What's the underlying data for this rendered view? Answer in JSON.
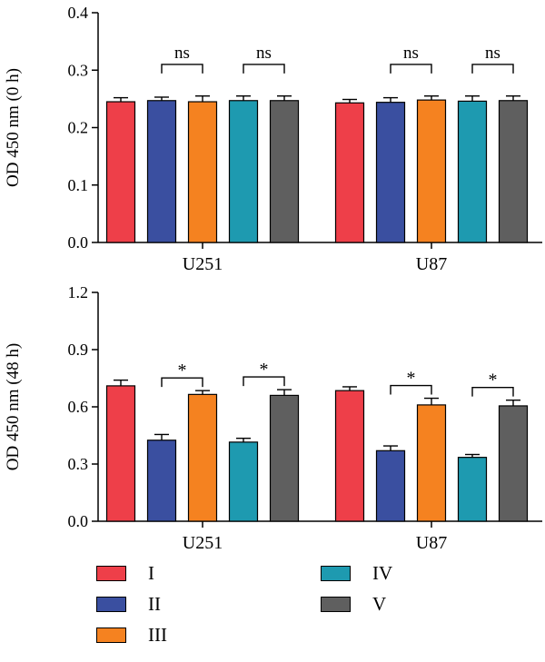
{
  "chart_data": [
    {
      "type": "bar",
      "ylabel": "OD 450 nm (0 h)",
      "ylim": [
        0,
        0.4
      ],
      "yticks": [
        "0.0",
        "0.1",
        "0.2",
        "0.3",
        "0.4"
      ],
      "ytick_values": [
        0,
        0.1,
        0.2,
        0.3,
        0.4
      ],
      "categories": [
        "U251",
        "U87"
      ],
      "series": [
        {
          "name": "I",
          "values": [
            0.245,
            0.243
          ],
          "errors": [
            0.007,
            0.006
          ]
        },
        {
          "name": "II",
          "values": [
            0.247,
            0.244
          ],
          "errors": [
            0.006,
            0.008
          ]
        },
        {
          "name": "III",
          "values": [
            0.245,
            0.248
          ],
          "errors": [
            0.01,
            0.007
          ]
        },
        {
          "name": "IV",
          "values": [
            0.247,
            0.246
          ],
          "errors": [
            0.008,
            0.009
          ]
        },
        {
          "name": "V",
          "values": [
            0.247,
            0.247
          ],
          "errors": [
            0.008,
            0.008
          ]
        }
      ],
      "annotations": [
        {
          "group": 0,
          "from": 1,
          "to": 2,
          "text": "ns"
        },
        {
          "group": 0,
          "from": 3,
          "to": 4,
          "text": "ns"
        },
        {
          "group": 1,
          "from": 1,
          "to": 2,
          "text": "ns"
        },
        {
          "group": 1,
          "from": 3,
          "to": 4,
          "text": "ns"
        }
      ]
    },
    {
      "type": "bar",
      "ylabel": "OD 450 nm (48 h)",
      "ylim": [
        0,
        1.2
      ],
      "yticks": [
        "0.0",
        "0.3",
        "0.6",
        "0.9",
        "1.2"
      ],
      "ytick_values": [
        0,
        0.3,
        0.6,
        0.9,
        1.2
      ],
      "categories": [
        "U251",
        "U87"
      ],
      "series": [
        {
          "name": "I",
          "values": [
            0.71,
            0.685
          ],
          "errors": [
            0.03,
            0.02
          ]
        },
        {
          "name": "II",
          "values": [
            0.425,
            0.37
          ],
          "errors": [
            0.03,
            0.025
          ]
        },
        {
          "name": "III",
          "values": [
            0.665,
            0.61
          ],
          "errors": [
            0.02,
            0.035
          ]
        },
        {
          "name": "IV",
          "values": [
            0.415,
            0.335
          ],
          "errors": [
            0.02,
            0.015
          ]
        },
        {
          "name": "V",
          "values": [
            0.66,
            0.605
          ],
          "errors": [
            0.03,
            0.03
          ]
        }
      ],
      "annotations": [
        {
          "group": 0,
          "from": 1,
          "to": 2,
          "text": "*"
        },
        {
          "group": 0,
          "from": 3,
          "to": 4,
          "text": "*"
        },
        {
          "group": 1,
          "from": 1,
          "to": 2,
          "text": "*"
        },
        {
          "group": 1,
          "from": 3,
          "to": 4,
          "text": "*"
        }
      ]
    }
  ],
  "legend": {
    "placement": "bottom",
    "items": [
      {
        "label": "I",
        "color": "#EE3F49"
      },
      {
        "label": "II",
        "color": "#3A4FA0"
      },
      {
        "label": "III",
        "color": "#F58220"
      },
      {
        "label": "IV",
        "color": "#1E9AB0"
      },
      {
        "label": "V",
        "color": "#5F5F5F"
      }
    ]
  }
}
